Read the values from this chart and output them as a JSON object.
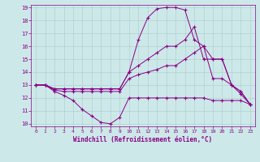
{
  "xlabel": "Windchill (Refroidissement éolien,°C)",
  "background_color": "#cde8e8",
  "line_color": "#880088",
  "xlim": [
    -0.5,
    23.5
  ],
  "ylim": [
    9.8,
    19.2
  ],
  "xticks": [
    0,
    1,
    2,
    3,
    4,
    5,
    6,
    7,
    8,
    9,
    10,
    11,
    12,
    13,
    14,
    15,
    16,
    17,
    18,
    19,
    20,
    21,
    22,
    23
  ],
  "yticks": [
    10,
    11,
    12,
    13,
    14,
    15,
    16,
    17,
    18,
    19
  ],
  "series": [
    {
      "x": [
        0,
        1,
        2,
        3,
        4,
        5,
        6,
        7,
        8,
        9,
        10,
        11,
        12,
        13,
        14,
        15,
        16,
        17,
        18,
        19,
        20,
        21,
        22,
        23
      ],
      "y": [
        13,
        13,
        12.5,
        12.2,
        11.8,
        11.1,
        10.6,
        10.1,
        10.0,
        10.5,
        12.0,
        12.0,
        12.0,
        12.0,
        12.0,
        12.0,
        12.0,
        12.0,
        12.0,
        11.8,
        11.8,
        11.8,
        11.8,
        11.5
      ]
    },
    {
      "x": [
        0,
        1,
        2,
        3,
        4,
        5,
        6,
        7,
        8,
        9,
        10,
        11,
        12,
        13,
        14,
        15,
        16,
        17,
        18,
        19,
        20,
        21,
        22,
        23
      ],
      "y": [
        13,
        13,
        12.6,
        12.5,
        12.5,
        12.5,
        12.5,
        12.5,
        12.5,
        12.5,
        13.5,
        13.8,
        14.0,
        14.2,
        14.5,
        14.5,
        15.0,
        15.5,
        16.0,
        13.5,
        13.5,
        13.0,
        12.5,
        11.5
      ]
    },
    {
      "x": [
        0,
        1,
        2,
        3,
        4,
        5,
        6,
        7,
        8,
        9,
        10,
        11,
        12,
        13,
        14,
        15,
        16,
        17,
        18,
        19,
        20,
        21,
        22,
        23
      ],
      "y": [
        13,
        13,
        12.7,
        12.7,
        12.7,
        12.7,
        12.7,
        12.7,
        12.7,
        12.7,
        14.0,
        14.5,
        15.0,
        15.5,
        16.0,
        16.0,
        16.5,
        17.5,
        15.0,
        15.0,
        15.0,
        13.0,
        12.5,
        11.5
      ]
    },
    {
      "x": [
        0,
        1,
        2,
        3,
        4,
        5,
        6,
        7,
        8,
        9,
        10,
        11,
        12,
        13,
        14,
        15,
        16,
        17,
        18,
        19,
        20,
        21,
        22,
        23
      ],
      "y": [
        13,
        13,
        12.7,
        12.7,
        12.7,
        12.7,
        12.7,
        12.7,
        12.7,
        12.7,
        14.0,
        16.5,
        18.2,
        18.9,
        19.0,
        19.0,
        18.8,
        16.5,
        16.0,
        15.0,
        15.0,
        13.0,
        12.3,
        11.5
      ]
    }
  ]
}
